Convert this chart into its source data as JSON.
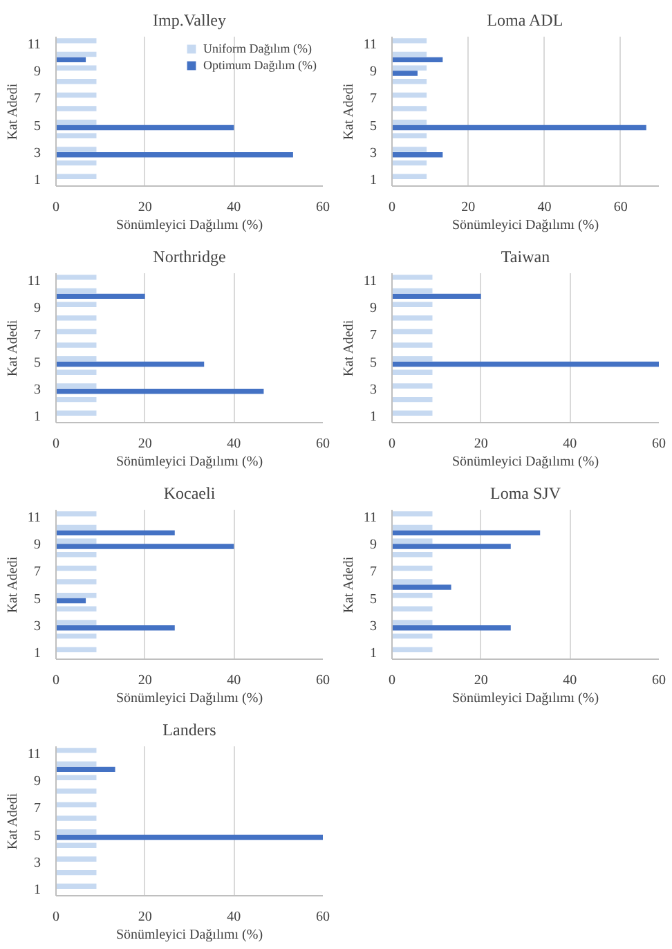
{
  "chart_data": [
    {
      "type": "bar",
      "orientation": "horizontal",
      "title": "Imp.Valley",
      "xlabel": "Sönümleyici Dağılımı (%)",
      "ylabel": "Kat Adedi",
      "categories": [
        "11",
        null,
        "9",
        null,
        "7",
        null,
        "5",
        null,
        "3",
        null,
        "1"
      ],
      "xlim": [
        0,
        60
      ],
      "xticks": [
        0,
        20,
        40,
        60
      ],
      "grid": "x",
      "legend": "top right",
      "series": [
        {
          "name": "Uniform Dağılım (%)",
          "color": "#c6d9f1",
          "values": [
            9.09,
            9.09,
            9.09,
            9.09,
            9.09,
            9.09,
            9.09,
            9.09,
            9.09,
            9.09,
            9.09
          ]
        },
        {
          "name": "Optimum Dağılım (%)",
          "color": "#4472c4",
          "values": [
            0,
            6.7,
            0,
            0,
            0,
            0,
            40,
            0,
            53.3,
            0,
            0
          ]
        }
      ]
    },
    {
      "type": "bar",
      "orientation": "horizontal",
      "title": "Loma ADL",
      "xlabel": "Sönümleyici Dağılımı (%)",
      "ylabel": "Kat Adedi",
      "categories": [
        "11",
        null,
        "9",
        null,
        "7",
        null,
        "5",
        null,
        "3",
        null,
        "1"
      ],
      "xlim": [
        0,
        70
      ],
      "xticks": [
        0,
        20,
        40,
        60
      ],
      "grid": "x",
      "series": [
        {
          "color": "#c6d9f1",
          "values": [
            9.09,
            9.09,
            9.09,
            9.09,
            9.09,
            9.09,
            9.09,
            9.09,
            9.09,
            9.09,
            9.09
          ]
        },
        {
          "color": "#4472c4",
          "values": [
            0,
            13.3,
            6.7,
            0,
            0,
            0,
            66.7,
            0,
            13.3,
            0,
            0
          ]
        }
      ]
    },
    {
      "type": "bar",
      "orientation": "horizontal",
      "title": "Northridge",
      "xlabel": "Sönümleyici Dağılımı (%)",
      "ylabel": "Kat Adedi",
      "categories": [
        "11",
        null,
        "9",
        null,
        "7",
        null,
        "5",
        null,
        "3",
        null,
        "1"
      ],
      "xlim": [
        0,
        60
      ],
      "xticks": [
        0,
        20,
        40,
        60
      ],
      "grid": "x",
      "series": [
        {
          "color": "#c6d9f1",
          "values": [
            9.09,
            9.09,
            9.09,
            9.09,
            9.09,
            9.09,
            9.09,
            9.09,
            9.09,
            9.09,
            9.09
          ]
        },
        {
          "color": "#4472c4",
          "values": [
            0,
            20,
            0,
            0,
            0,
            0,
            33.3,
            0,
            46.7,
            0,
            0
          ]
        }
      ]
    },
    {
      "type": "bar",
      "orientation": "horizontal",
      "title": "Taiwan",
      "xlabel": "Sönümleyici Dağılımı (%)",
      "ylabel": "Kat Adedi",
      "categories": [
        "11",
        null,
        "9",
        null,
        "7",
        null,
        "5",
        null,
        "3",
        null,
        "1"
      ],
      "xlim": [
        0,
        60
      ],
      "xticks": [
        0,
        20,
        40,
        60
      ],
      "grid": "x",
      "series": [
        {
          "color": "#c6d9f1",
          "values": [
            9.09,
            9.09,
            9.09,
            9.09,
            9.09,
            9.09,
            9.09,
            9.09,
            9.09,
            9.09,
            9.09
          ]
        },
        {
          "color": "#4472c4",
          "values": [
            0,
            20,
            0,
            0,
            0,
            0,
            60,
            0,
            0,
            0,
            0
          ]
        }
      ]
    },
    {
      "type": "bar",
      "orientation": "horizontal",
      "title": "Kocaeli",
      "xlabel": "Sönümleyici Dağılımı (%)",
      "ylabel": "Kat Adedi",
      "categories": [
        "11",
        null,
        "9",
        null,
        "7",
        null,
        "5",
        null,
        "3",
        null,
        "1"
      ],
      "xlim": [
        0,
        60
      ],
      "xticks": [
        0,
        20,
        40,
        60
      ],
      "grid": "x",
      "series": [
        {
          "color": "#c6d9f1",
          "values": [
            9.09,
            9.09,
            9.09,
            9.09,
            9.09,
            9.09,
            9.09,
            9.09,
            9.09,
            9.09,
            9.09
          ]
        },
        {
          "color": "#4472c4",
          "values": [
            0,
            26.7,
            40,
            0,
            0,
            0,
            6.7,
            0,
            26.7,
            0,
            0
          ]
        }
      ]
    },
    {
      "type": "bar",
      "orientation": "horizontal",
      "title": "Loma SJV",
      "xlabel": "Sönümleyici Dağılımı (%)",
      "ylabel": "Kat Adedi",
      "categories": [
        "11",
        null,
        "9",
        null,
        "7",
        null,
        "5",
        null,
        "3",
        null,
        "1"
      ],
      "xlim": [
        0,
        60
      ],
      "xticks": [
        0,
        20,
        40,
        60
      ],
      "grid": "x",
      "series": [
        {
          "color": "#c6d9f1",
          "values": [
            9.09,
            9.09,
            9.09,
            9.09,
            9.09,
            9.09,
            9.09,
            9.09,
            9.09,
            9.09,
            9.09
          ]
        },
        {
          "color": "#4472c4",
          "values": [
            0,
            33.3,
            26.7,
            0,
            0,
            13.3,
            0,
            0,
            26.7,
            0,
            0
          ]
        }
      ]
    },
    {
      "type": "bar",
      "orientation": "horizontal",
      "title": "Landers",
      "xlabel": "Sönümleyici Dağılımı (%)",
      "ylabel": "Kat Adedi",
      "categories": [
        "11",
        null,
        "9",
        null,
        "7",
        null,
        "5",
        null,
        "3",
        null,
        "1"
      ],
      "xlim": [
        0,
        60
      ],
      "xticks": [
        0,
        20,
        40,
        60
      ],
      "grid": "x",
      "series": [
        {
          "color": "#c6d9f1",
          "values": [
            9.09,
            9.09,
            9.09,
            9.09,
            9.09,
            9.09,
            9.09,
            9.09,
            9.09,
            9.09,
            9.09
          ]
        },
        {
          "color": "#4472c4",
          "values": [
            0,
            13.3,
            0,
            0,
            0,
            0,
            60,
            0,
            0,
            0,
            0
          ]
        }
      ]
    }
  ]
}
